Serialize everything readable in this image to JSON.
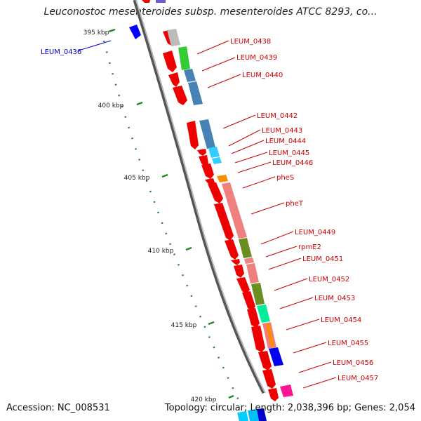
{
  "header": {
    "title": "Leuconostoc mesenteroides subsp. mesenteroides ATCC 8293, co..."
  },
  "footer": {
    "accession": "Accession: NC_008531",
    "summary": "Topology: circular; Length: 2,038,396 bp; Genes: 2,054"
  },
  "axis": {
    "ticks": [
      {
        "label": "395 kbp"
      },
      {
        "label": "400 kbp"
      },
      {
        "label": "405 kbp"
      },
      {
        "label": "410 kbp"
      },
      {
        "label": "415 kbp"
      },
      {
        "label": "420 kbp"
      }
    ]
  },
  "genes": [
    {
      "label": "LEUM_0436",
      "color": "#0000cc"
    },
    {
      "label": "LEUM_0438",
      "color": "#cc0000"
    },
    {
      "label": "LEUM_0439",
      "color": "#cc0000"
    },
    {
      "label": "LEUM_0440",
      "color": "#cc0000"
    },
    {
      "label": "LEUM_0442",
      "color": "#cc0000"
    },
    {
      "label": "LEUM_0443",
      "color": "#cc0000"
    },
    {
      "label": "LEUM_0444",
      "color": "#cc0000"
    },
    {
      "label": "LEUM_0445",
      "color": "#cc0000"
    },
    {
      "label": "LEUM_0446",
      "color": "#cc0000"
    },
    {
      "label": "pheS",
      "color": "#cc0000"
    },
    {
      "label": "pheT",
      "color": "#cc0000"
    },
    {
      "label": "LEUM_0449",
      "color": "#cc0000"
    },
    {
      "label": "rpmE2",
      "color": "#cc0000"
    },
    {
      "label": "LEUM_0451",
      "color": "#cc0000"
    },
    {
      "label": "LEUM_0452",
      "color": "#cc0000"
    },
    {
      "label": "LEUM_0453",
      "color": "#cc0000"
    },
    {
      "label": "LEUM_0454",
      "color": "#cc0000"
    },
    {
      "label": "LEUM_0455",
      "color": "#cc0000"
    },
    {
      "label": "LEUM_0456",
      "color": "#cc0000"
    },
    {
      "label": "LEUM_0457",
      "color": "#cc0000"
    }
  ]
}
